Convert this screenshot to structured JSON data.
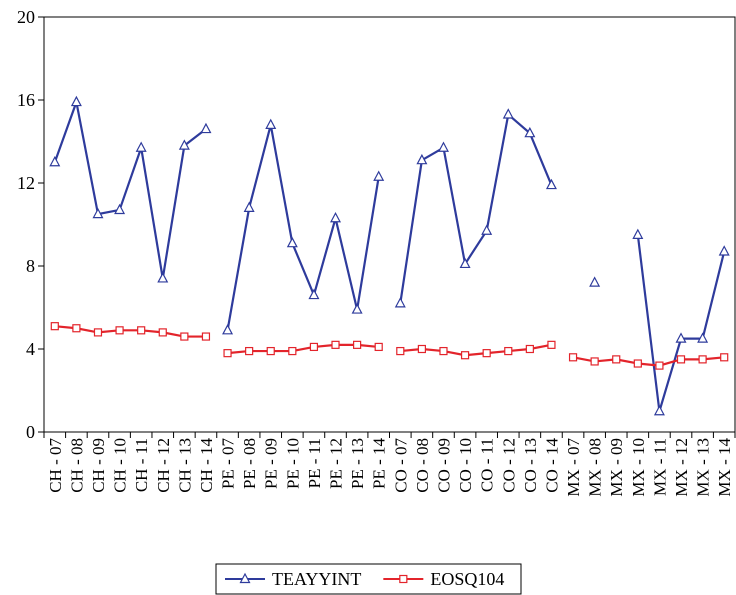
{
  "chart_data": {
    "type": "line",
    "categories": [
      "CH - 07",
      "CH - 08",
      "CH - 09",
      "CH - 10",
      "CH - 11",
      "CH - 12",
      "CH - 13",
      "CH - 14",
      "PE - 07",
      "PE - 08",
      "PE - 09",
      "PE - 10",
      "PE - 11",
      "PE - 12",
      "PE - 13",
      "PE - 14",
      "CO - 07",
      "CO - 08",
      "CO - 09",
      "CO - 10",
      "CO - 11",
      "CO - 12",
      "CO - 13",
      "CO - 14",
      "MX - 07",
      "MX - 08",
      "MX - 09",
      "MX - 10",
      "MX - 11",
      "MX - 12",
      "MX - 13",
      "MX - 14"
    ],
    "series": [
      {
        "name": "TEAYYINT",
        "color": "#2e3b9c",
        "marker": "triangle",
        "values": [
          13.0,
          15.9,
          10.5,
          10.7,
          13.7,
          7.4,
          13.8,
          14.6,
          4.9,
          10.8,
          14.8,
          9.1,
          6.6,
          10.3,
          5.9,
          12.3,
          6.2,
          13.1,
          13.7,
          8.1,
          9.7,
          15.3,
          14.4,
          11.9,
          null,
          7.2,
          null,
          9.5,
          1.0,
          4.5,
          4.5,
          8.7
        ]
      },
      {
        "name": "EOSQ104",
        "color": "#e3242b",
        "marker": "square",
        "values": [
          5.1,
          5.0,
          4.8,
          4.9,
          4.9,
          4.8,
          4.6,
          4.6,
          3.8,
          3.9,
          3.9,
          3.9,
          4.1,
          4.2,
          4.2,
          4.1,
          3.9,
          4.0,
          3.9,
          3.7,
          3.8,
          3.9,
          4.0,
          4.2,
          3.6,
          3.4,
          3.5,
          3.3,
          3.2,
          3.5,
          3.5,
          3.6
        ]
      }
    ],
    "ylim": [
      0,
      20
    ],
    "yticks": [
      0,
      4,
      8,
      12,
      16,
      20
    ],
    "grid": false,
    "legend": "bottom"
  }
}
